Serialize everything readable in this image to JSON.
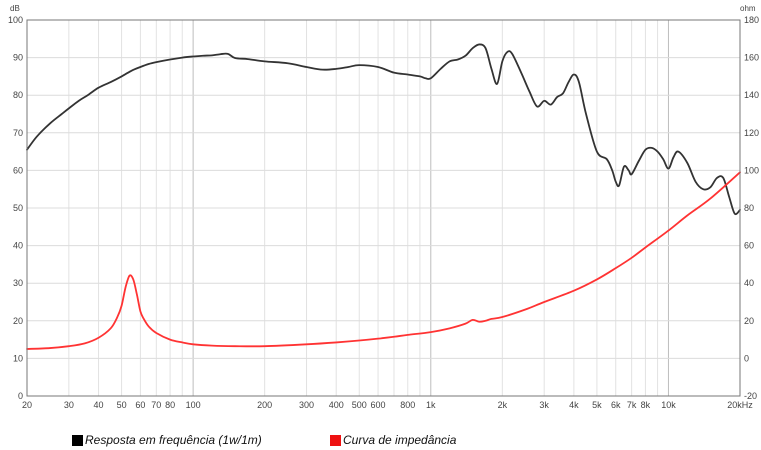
{
  "chart_data": {
    "type": "line",
    "title": "",
    "xlabel": "",
    "x_scale": "log",
    "xlim": [
      20,
      20000
    ],
    "x_ticks": [
      20,
      30,
      40,
      50,
      60,
      70,
      80,
      100,
      200,
      300,
      400,
      500,
      600,
      800,
      1000,
      2000,
      3000,
      4000,
      5000,
      6000,
      7000,
      8000,
      10000,
      20000
    ],
    "x_tick_labels": [
      "20",
      "30",
      "40",
      "50",
      "60",
      "70",
      "80",
      "100",
      "200",
      "300",
      "400",
      "500",
      "600",
      "800",
      "1k",
      "2k",
      "3k",
      "4k",
      "5k",
      "6k",
      "7k",
      "8k",
      "10k",
      "20kHz"
    ],
    "left_axis": {
      "unit": "dB",
      "ylim": [
        0,
        100
      ],
      "ticks": [
        0,
        10,
        20,
        30,
        40,
        50,
        60,
        70,
        80,
        90,
        100
      ],
      "tick_labels": [
        "0",
        "10",
        "20",
        "30",
        "40",
        "50",
        "60",
        "70",
        "80",
        "90",
        "100"
      ]
    },
    "right_axis": {
      "unit": "ohm",
      "ylim": [
        -20,
        180
      ],
      "ticks": [
        -20,
        0,
        20,
        40,
        60,
        80,
        100,
        120,
        140,
        160,
        180
      ],
      "tick_labels": [
        "-20",
        "0",
        "20",
        "40",
        "60",
        "80",
        "100",
        "120",
        "140",
        "160",
        "180"
      ]
    },
    "grid": true,
    "legend_position": "bottom-left",
    "series": [
      {
        "name": "Resposta em frequência (1w/1m)",
        "axis": "left",
        "color": "#333333",
        "x": [
          20,
          22,
          25,
          28,
          30,
          33,
          36,
          40,
          45,
          50,
          55,
          60,
          65,
          70,
          80,
          90,
          100,
          110,
          120,
          130,
          140,
          150,
          170,
          200,
          250,
          300,
          350,
          400,
          450,
          500,
          600,
          700,
          800,
          900,
          950,
          1000,
          1100,
          1200,
          1300,
          1400,
          1500,
          1600,
          1700,
          1800,
          1900,
          2000,
          2100,
          2200,
          2400,
          2600,
          2800,
          3000,
          3200,
          3400,
          3600,
          3800,
          4000,
          4200,
          4500,
          5000,
          5500,
          5800,
          6000,
          6200,
          6500,
          6800,
          7000,
          7500,
          8000,
          8500,
          9000,
          9500,
          10000,
          10500,
          11000,
          12000,
          13000,
          14000,
          15000,
          16000,
          17000,
          18000,
          19000,
          20000
        ],
        "y": [
          65.5,
          69,
          72.5,
          75,
          76.5,
          78.5,
          80,
          82,
          83.5,
          85,
          86.5,
          87.5,
          88.3,
          88.8,
          89.5,
          90,
          90.3,
          90.5,
          90.6,
          90.9,
          91,
          89.9,
          89.6,
          89,
          88.5,
          87.5,
          86.8,
          87,
          87.5,
          88,
          87.5,
          86,
          85.5,
          85,
          84.5,
          84.5,
          87,
          89,
          89.5,
          90.5,
          92.5,
          93.5,
          92.5,
          87,
          83,
          89,
          91.5,
          91,
          86,
          81,
          77,
          78.5,
          77.5,
          79.5,
          80.5,
          83.5,
          85.5,
          83.5,
          75,
          65,
          63,
          60,
          57,
          56,
          61,
          60,
          59,
          62.5,
          65.5,
          66,
          65,
          63,
          60.5,
          63.5,
          65,
          62,
          57,
          55,
          55.5,
          58,
          58,
          53,
          48.5,
          49.5
        ]
      },
      {
        "name": "Curva de impedância",
        "axis": "right",
        "color": "#ff3333",
        "x": [
          20,
          25,
          30,
          35,
          40,
          45,
          48,
          50,
          52,
          54,
          56,
          58,
          60,
          62,
          65,
          70,
          80,
          90,
          100,
          120,
          150,
          200,
          300,
          400,
          500,
          600,
          700,
          800,
          1000,
          1200,
          1400,
          1500,
          1600,
          1700,
          1800,
          2000,
          2500,
          3000,
          4000,
          5000,
          6000,
          7000,
          8000,
          10000,
          12000,
          15000,
          20000
        ],
        "y": [
          5,
          5.5,
          6.5,
          8,
          11,
          16,
          22,
          28,
          38,
          44,
          42,
          34,
          25,
          21,
          17,
          13.5,
          10,
          8.5,
          7.5,
          6.8,
          6.5,
          6.5,
          7.5,
          8.5,
          9.5,
          10.5,
          11.5,
          12.5,
          14,
          16,
          18.5,
          20.5,
          19.5,
          20,
          21,
          22,
          26,
          30,
          36,
          42,
          48,
          53.5,
          59,
          68,
          76,
          85,
          99
        ]
      }
    ]
  }
}
